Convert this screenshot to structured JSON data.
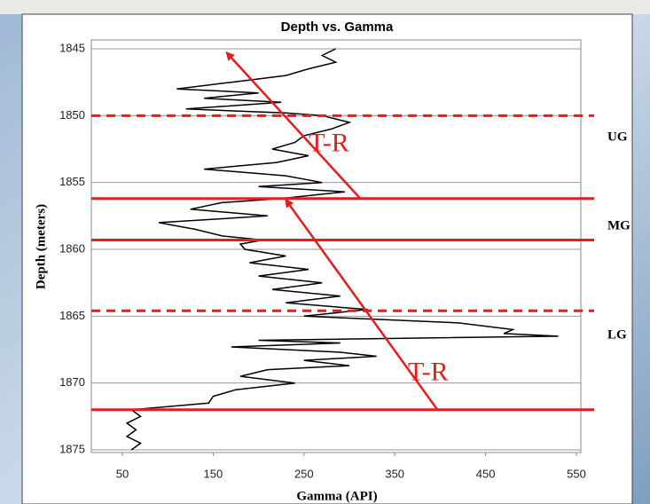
{
  "chart_data": {
    "type": "line",
    "title": "Depth vs. Gamma",
    "x_label": "Gamma (API)",
    "y_label": "Depth (meters)",
    "xlim": [
      50,
      550
    ],
    "xticks": [
      50,
      150,
      250,
      350,
      450,
      550
    ],
    "ylim": [
      1875,
      1845
    ],
    "yticks": [
      1845,
      1850,
      1855,
      1860,
      1865,
      1870,
      1875
    ],
    "grid": true,
    "series": [
      {
        "color": "#000000",
        "depth": [
          1845,
          1845.5,
          1846,
          1846.5,
          1847,
          1847.5,
          1848,
          1848.3,
          1848.7,
          1849,
          1849.5,
          1849.8,
          1850,
          1850.5,
          1851,
          1851.5,
          1852,
          1852.5,
          1853,
          1853.5,
          1854,
          1854.5,
          1855,
          1855.3,
          1855.7,
          1856.2,
          1856.5,
          1857,
          1857.5,
          1858,
          1858.5,
          1859,
          1859.3,
          1859.6,
          1860,
          1860.5,
          1861,
          1861.5,
          1862,
          1862.5,
          1863,
          1863.5,
          1864,
          1864.5,
          1865,
          1865.5,
          1866,
          1866.3,
          1866.5,
          1866.8,
          1867,
          1867.3,
          1867.7,
          1868,
          1868.3,
          1868.7,
          1869,
          1869.5,
          1870,
          1870.5,
          1871,
          1871.5,
          1872,
          1872.5,
          1873,
          1873.5,
          1874,
          1874.5,
          1875
        ],
        "values": [
          285,
          270,
          285,
          255,
          230,
          170,
          110,
          200,
          140,
          225,
          120,
          230,
          270,
          300,
          280,
          250,
          240,
          215,
          255,
          220,
          140,
          230,
          270,
          200,
          295,
          225,
          160,
          125,
          210,
          90,
          130,
          160,
          205,
          180,
          185,
          230,
          190,
          255,
          200,
          270,
          215,
          290,
          230,
          320,
          250,
          420,
          480,
          470,
          530,
          200,
          290,
          170,
          290,
          330,
          250,
          300,
          210,
          180,
          240,
          175,
          150,
          145,
          60,
          70,
          55,
          65,
          55,
          70,
          60
        ]
      }
    ],
    "boundaries": [
      {
        "depth": 1850,
        "style": "dashed"
      },
      {
        "depth": 1856.2,
        "style": "solid"
      },
      {
        "depth": 1859.3,
        "style": "solid"
      },
      {
        "depth": 1864.6,
        "style": "dashed"
      },
      {
        "depth": 1872,
        "style": "solid"
      }
    ],
    "boundary_color": "#e81c1c",
    "zones": [
      "UG",
      "MG",
      "LG"
    ],
    "arrows": [
      {
        "label": "T-R",
        "from": [
          312,
          1856.2
        ],
        "to": [
          165,
          1845.3
        ]
      },
      {
        "label": "T-R",
        "from": [
          397,
          1872
        ],
        "to": [
          230,
          1856.3
        ]
      }
    ]
  }
}
